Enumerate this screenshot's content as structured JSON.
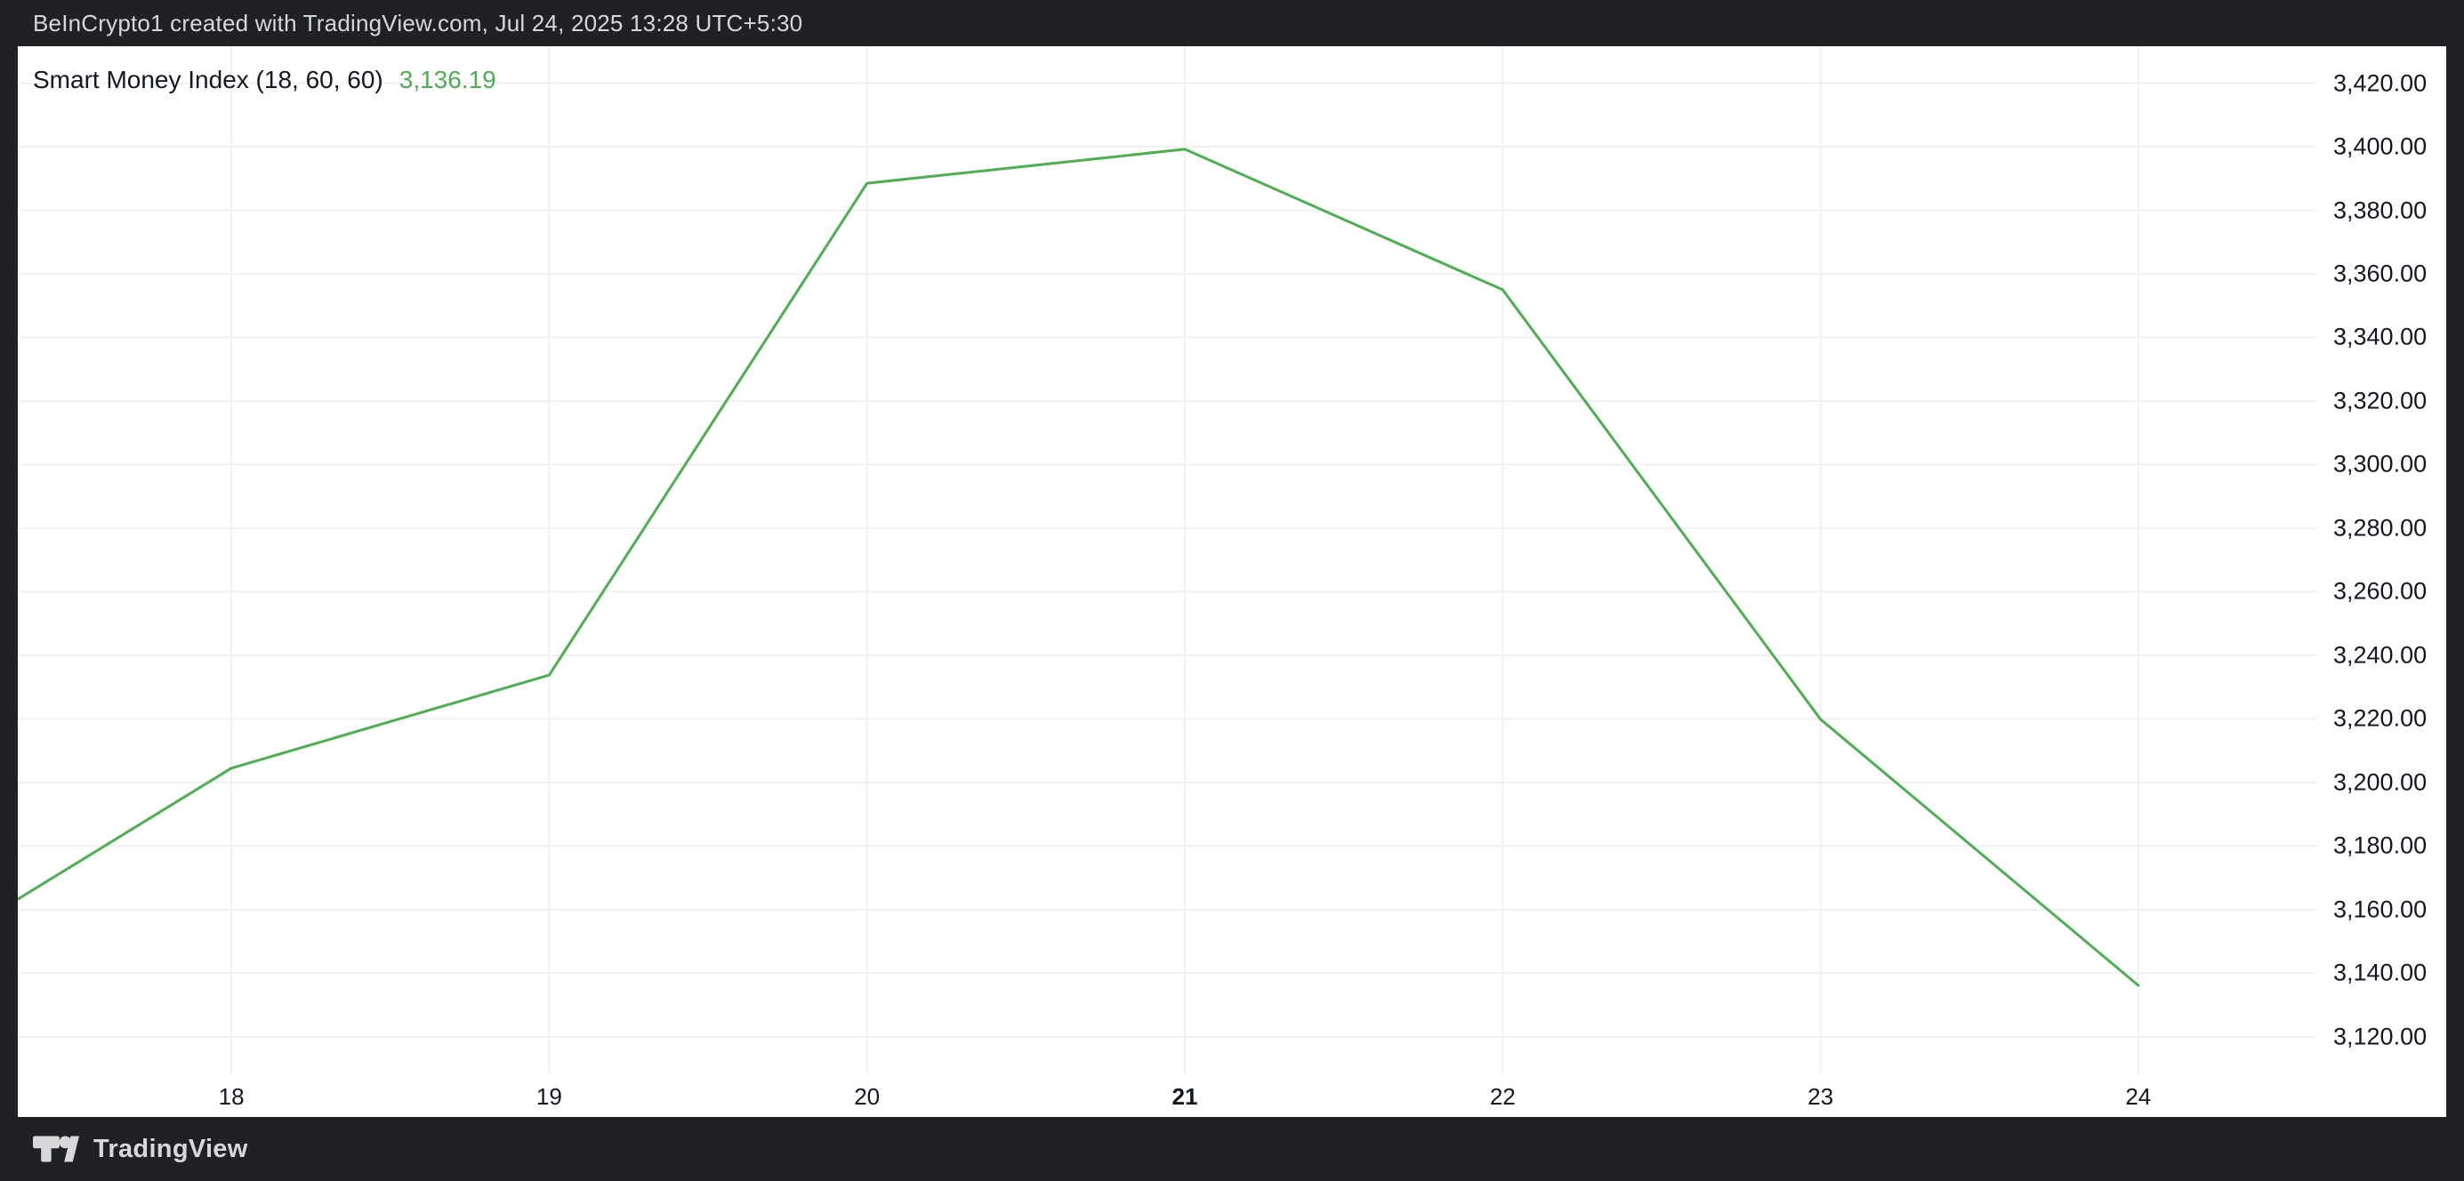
{
  "top_bar": {
    "attribution": "BeInCrypto1 created with TradingView.com, Jul 24, 2025 13:28 UTC+5:30"
  },
  "legend": {
    "indicator_title": "Smart Money Index (18, 60, 60)",
    "indicator_value": "3,136.19"
  },
  "footer": {
    "brand": "TradingView"
  },
  "colors": {
    "accent_green": "#4caf50",
    "chrome_background": "#1f2124",
    "chrome_text": "#d6d8da",
    "pane_background": "#ffffff",
    "axis_text": "#131722",
    "grid": "#f0f1f3"
  },
  "chart_data": {
    "type": "line",
    "title": "Smart Money Index (18, 60, 60)",
    "xlabel": "",
    "ylabel": "",
    "grid": true,
    "grid_color": "#f0f1f3",
    "legend_position": "top-left",
    "last_value": 3136.19,
    "series": [
      {
        "name": "Smart Money Index",
        "color": "#4caf50",
        "x": [
          17.33,
          18,
          19,
          20,
          21,
          22,
          23,
          24
        ],
        "y": [
          3163.4,
          3204.5,
          3233.8,
          3388.5,
          3399.2,
          3355.0,
          3219.9,
          3136.19
        ]
      }
    ],
    "x_ticks": [
      {
        "value": 18,
        "label": "18",
        "bold": false
      },
      {
        "value": 19,
        "label": "19",
        "bold": false
      },
      {
        "value": 20,
        "label": "20",
        "bold": false
      },
      {
        "value": 21,
        "label": "21",
        "bold": true
      },
      {
        "value": 22,
        "label": "22",
        "bold": false
      },
      {
        "value": 23,
        "label": "23",
        "bold": false
      },
      {
        "value": 24,
        "label": "24",
        "bold": false
      }
    ],
    "y_ticks": [
      {
        "value": 3420,
        "label": "3,420.00"
      },
      {
        "value": 3400,
        "label": "3,400.00"
      },
      {
        "value": 3380,
        "label": "3,380.00"
      },
      {
        "value": 3360,
        "label": "3,360.00"
      },
      {
        "value": 3340,
        "label": "3,340.00"
      },
      {
        "value": 3320,
        "label": "3,320.00"
      },
      {
        "value": 3300,
        "label": "3,300.00"
      },
      {
        "value": 3280,
        "label": "3,280.00"
      },
      {
        "value": 3260,
        "label": "3,260.00"
      },
      {
        "value": 3240,
        "label": "3,240.00"
      },
      {
        "value": 3220,
        "label": "3,220.00"
      },
      {
        "value": 3200,
        "label": "3,200.00"
      },
      {
        "value": 3180,
        "label": "3,180.00"
      },
      {
        "value": 3160,
        "label": "3,160.00"
      },
      {
        "value": 3140,
        "label": "3,140.00"
      },
      {
        "value": 3120,
        "label": "3,120.00"
      }
    ],
    "xlim": [
      17.328,
      24.563
    ],
    "ylim": [
      3108.5,
      3431.6
    ]
  }
}
